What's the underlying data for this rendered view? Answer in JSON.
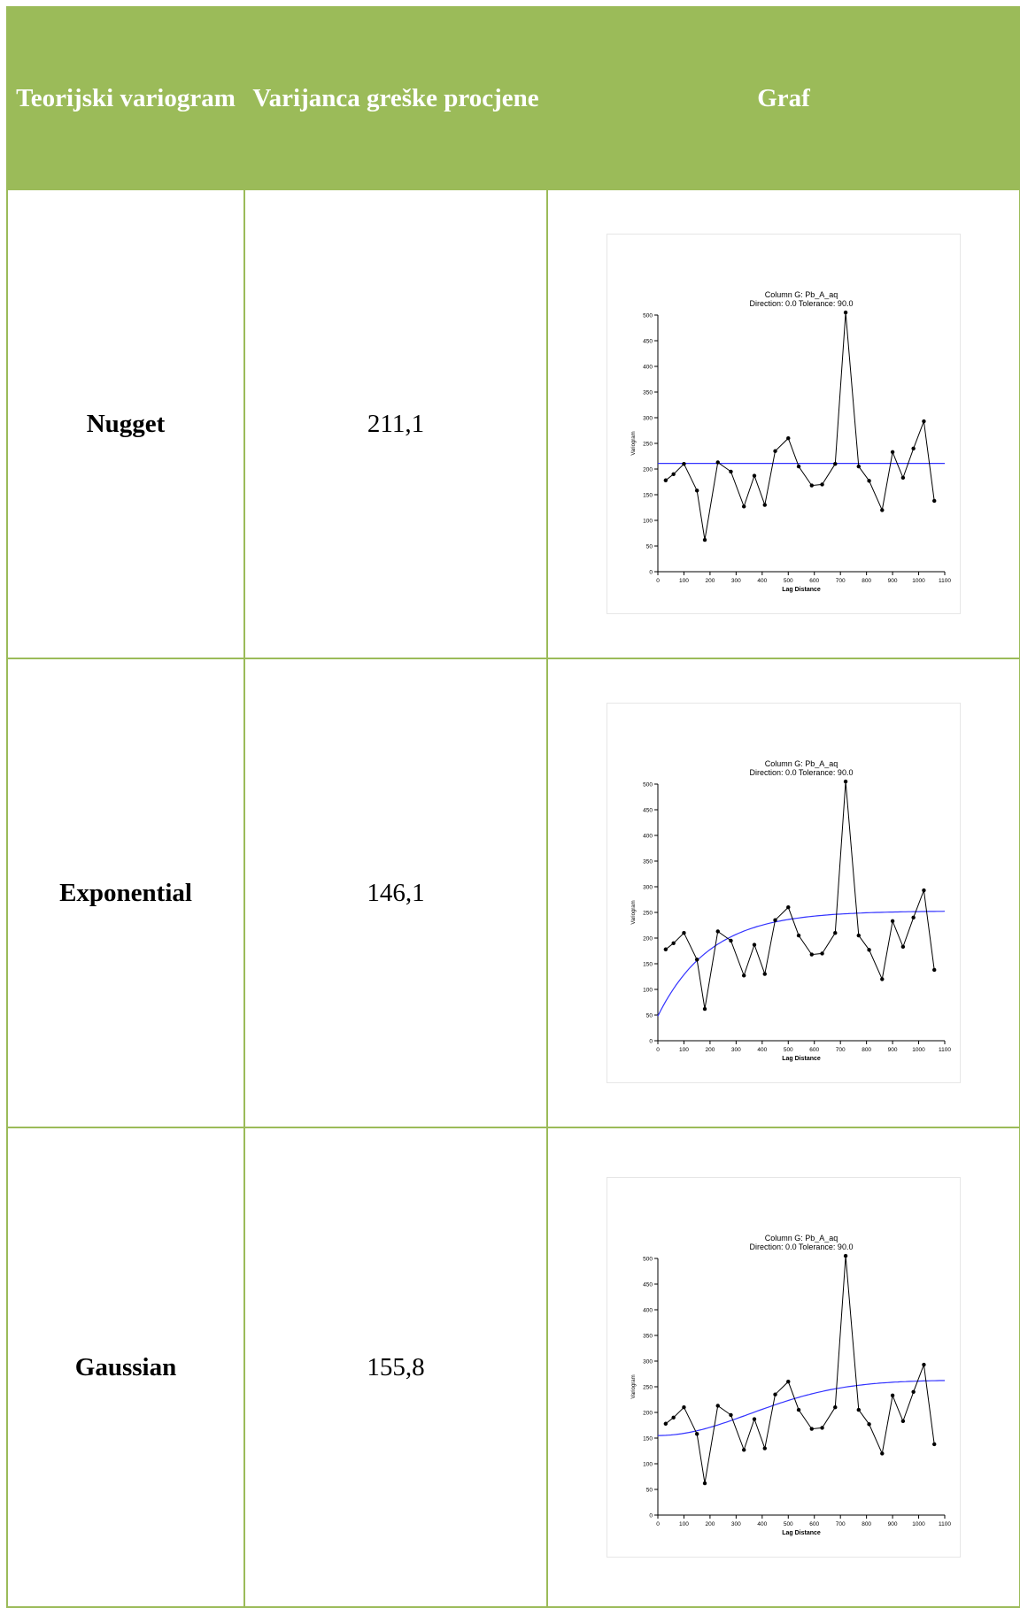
{
  "table": {
    "headers": [
      "Teorijski variogram",
      "Varijanca greške procjene",
      "Graf"
    ],
    "rows": [
      {
        "model": "Nugget",
        "value": "211,1"
      },
      {
        "model": "Exponential",
        "value": "146,1"
      },
      {
        "model": "Gaussian",
        "value": "155,8"
      }
    ]
  },
  "colors": {
    "header_bg": "#9bbb59",
    "border": "#9bbb59",
    "empirical_line": "#000000",
    "model_line": "#3333ff"
  },
  "chart_data": [
    {
      "type": "line",
      "title": "Column G:  Pb_A_aq",
      "subtitle": "Direction: 0.0  Tolerance: 90.0",
      "xlabel": "Lag Distance",
      "ylabel": "Variogram",
      "xlim": [
        0,
        1100
      ],
      "ylim": [
        0,
        500
      ],
      "xticks": [
        0,
        100,
        200,
        300,
        400,
        500,
        600,
        700,
        800,
        900,
        1000,
        1100
      ],
      "yticks": [
        0,
        50,
        100,
        150,
        200,
        250,
        300,
        350,
        400,
        450,
        500
      ],
      "series": [
        {
          "kind": "empirical",
          "x": [
            30,
            60,
            100,
            150,
            180,
            230,
            280,
            330,
            370,
            410,
            450,
            500,
            540,
            590,
            630,
            680,
            720,
            770,
            810,
            860,
            900,
            940,
            980,
            1020,
            1060
          ],
          "y": [
            178,
            190,
            210,
            158,
            62,
            213,
            195,
            127,
            187,
            130,
            235,
            260,
            205,
            168,
            170,
            210,
            505,
            205,
            177,
            120,
            233,
            183,
            240,
            293,
            138
          ]
        },
        {
          "kind": "model",
          "model": "nugget",
          "nugget": 211.1,
          "sill": 0,
          "range": 0
        }
      ]
    },
    {
      "type": "line",
      "title": "Column G:  Pb_A_aq",
      "subtitle": "Direction: 0.0  Tolerance: 90.0",
      "xlabel": "Lag Distance",
      "ylabel": "Variogram",
      "xlim": [
        0,
        1100
      ],
      "ylim": [
        0,
        500
      ],
      "xticks": [
        0,
        100,
        200,
        300,
        400,
        500,
        600,
        700,
        800,
        900,
        1000,
        1100
      ],
      "yticks": [
        0,
        50,
        100,
        150,
        200,
        250,
        300,
        350,
        400,
        450,
        500
      ],
      "series": [
        {
          "kind": "empirical",
          "x": [
            30,
            60,
            100,
            150,
            180,
            230,
            280,
            330,
            370,
            410,
            450,
            500,
            540,
            590,
            630,
            680,
            720,
            770,
            810,
            860,
            900,
            940,
            980,
            1020,
            1060
          ],
          "y": [
            178,
            190,
            210,
            158,
            62,
            213,
            195,
            127,
            187,
            130,
            235,
            260,
            205,
            168,
            170,
            210,
            505,
            205,
            177,
            120,
            233,
            183,
            240,
            293,
            138
          ]
        },
        {
          "kind": "model",
          "model": "exponential",
          "nugget": 48,
          "sill": 205,
          "range": 200
        }
      ]
    },
    {
      "type": "line",
      "title": "Column G:  Pb_A_aq",
      "subtitle": "Direction: 0.0  Tolerance: 90.0",
      "xlabel": "Lag Distance",
      "ylabel": "Variogram",
      "xlim": [
        0,
        1100
      ],
      "ylim": [
        0,
        500
      ],
      "xticks": [
        0,
        100,
        200,
        300,
        400,
        500,
        600,
        700,
        800,
        900,
        1000,
        1100
      ],
      "yticks": [
        0,
        50,
        100,
        150,
        200,
        250,
        300,
        350,
        400,
        450,
        500
      ],
      "series": [
        {
          "kind": "empirical",
          "x": [
            30,
            60,
            100,
            150,
            180,
            230,
            280,
            330,
            370,
            410,
            450,
            500,
            540,
            590,
            630,
            680,
            720,
            770,
            810,
            860,
            900,
            940,
            980,
            1020,
            1060
          ],
          "y": [
            178,
            190,
            210,
            158,
            62,
            213,
            195,
            127,
            187,
            130,
            235,
            260,
            205,
            168,
            170,
            210,
            505,
            205,
            177,
            120,
            233,
            183,
            240,
            293,
            138
          ]
        },
        {
          "kind": "model",
          "model": "gaussian",
          "nugget": 155,
          "sill": 108,
          "range": 500
        }
      ]
    }
  ]
}
